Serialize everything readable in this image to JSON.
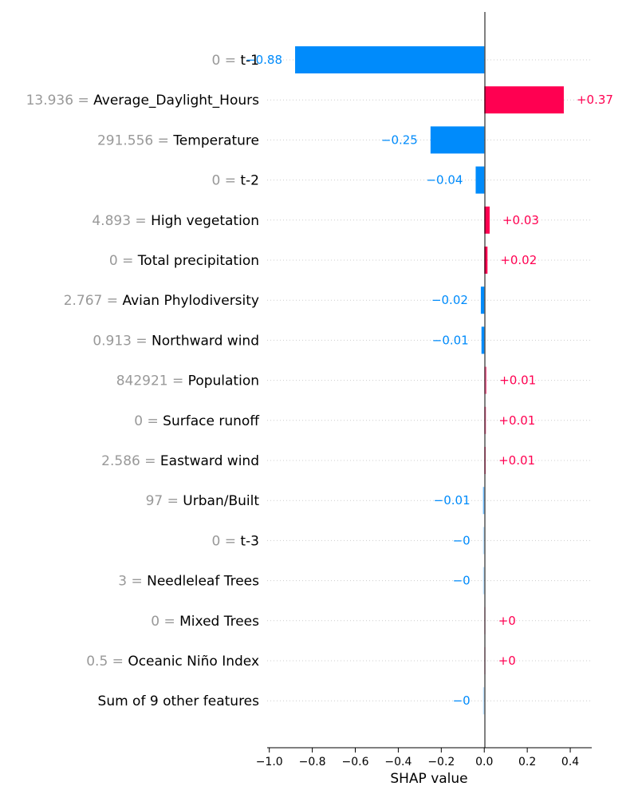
{
  "chart_data": {
    "type": "bar",
    "orientation": "horizontal",
    "subtype": "shap-waterfall",
    "xlabel": "SHAP value",
    "xlim": [
      -1.01,
      0.5
    ],
    "xticks": [
      -1.0,
      -0.8,
      -0.6,
      -0.4,
      -0.2,
      0.0,
      0.2,
      0.4
    ],
    "xtick_labels": [
      "−1.0",
      "−0.8",
      "−0.6",
      "−0.4",
      "−0.2",
      "0.0",
      "0.2",
      "0.4"
    ],
    "grid": "horizontal dotted",
    "colors": {
      "positive": "#ff0051",
      "negative": "#008bfb",
      "value_text": "#999999"
    },
    "features": [
      {
        "value": "0",
        "name": "t-1",
        "shap": -0.88,
        "label": "−0.88"
      },
      {
        "value": "13.936",
        "name": "Average_Daylight_Hours",
        "shap": 0.37,
        "label": "+0.37"
      },
      {
        "value": "291.556",
        "name": "Temperature",
        "shap": -0.25,
        "label": "−0.25"
      },
      {
        "value": "0",
        "name": "t-2",
        "shap": -0.04,
        "label": "−0.04"
      },
      {
        "value": "4.893",
        "name": "High vegetation",
        "shap": 0.025,
        "label": "+0.03"
      },
      {
        "value": "0",
        "name": "Total precipitation",
        "shap": 0.015,
        "label": "+0.02"
      },
      {
        "value": "2.767",
        "name": "Avian Phylodiversity",
        "shap": -0.016,
        "label": "−0.02"
      },
      {
        "value": "0.913",
        "name": "Northward wind",
        "shap": -0.013,
        "label": "−0.01"
      },
      {
        "value": "842921",
        "name": "Population",
        "shap": 0.011,
        "label": "+0.01"
      },
      {
        "value": "0",
        "name": "Surface runoff",
        "shap": 0.008,
        "label": "+0.01"
      },
      {
        "value": "2.586",
        "name": "Eastward wind",
        "shap": 0.007,
        "label": "+0.01"
      },
      {
        "value": "97",
        "name": "Urban/Built",
        "shap": -0.006,
        "label": "−0.01"
      },
      {
        "value": "0",
        "name": "t-3",
        "shap": -0.003,
        "label": "−0"
      },
      {
        "value": "3",
        "name": "Needleleaf Trees",
        "shap": -0.002,
        "label": "−0"
      },
      {
        "value": "0",
        "name": "Mixed Trees",
        "shap": 0.002,
        "label": "+0"
      },
      {
        "value": "0.5",
        "name": "Oceanic Niño Index",
        "shap": 0.001,
        "label": "+0"
      },
      {
        "value": "",
        "name": "Sum of 9 other features",
        "shap": -0.001,
        "label": "−0"
      }
    ]
  }
}
